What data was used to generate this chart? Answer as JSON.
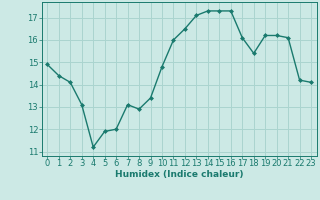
{
  "x": [
    0,
    1,
    2,
    3,
    4,
    5,
    6,
    7,
    8,
    9,
    10,
    11,
    12,
    13,
    14,
    15,
    16,
    17,
    18,
    19,
    20,
    21,
    22,
    23
  ],
  "y": [
    14.9,
    14.4,
    14.1,
    13.1,
    11.2,
    11.9,
    12.0,
    13.1,
    12.9,
    13.4,
    14.8,
    16.0,
    16.5,
    17.1,
    17.3,
    17.3,
    17.3,
    16.1,
    15.4,
    16.2,
    16.2,
    16.1,
    14.2,
    14.1
  ],
  "line_color": "#1a7a6e",
  "marker": "D",
  "marker_size": 2.0,
  "bg_color": "#cce9e5",
  "grid_color": "#aad4cf",
  "tick_color": "#1a7a6e",
  "xlabel": "Humidex (Indice chaleur)",
  "ylim": [
    10.8,
    17.7
  ],
  "xlim": [
    -0.5,
    23.5
  ],
  "yticks": [
    11,
    12,
    13,
    14,
    15,
    16,
    17
  ],
  "xticks": [
    0,
    1,
    2,
    3,
    4,
    5,
    6,
    7,
    8,
    9,
    10,
    11,
    12,
    13,
    14,
    15,
    16,
    17,
    18,
    19,
    20,
    21,
    22,
    23
  ],
  "label_fontsize": 6.5,
  "tick_fontsize": 6.0,
  "linewidth": 1.0
}
